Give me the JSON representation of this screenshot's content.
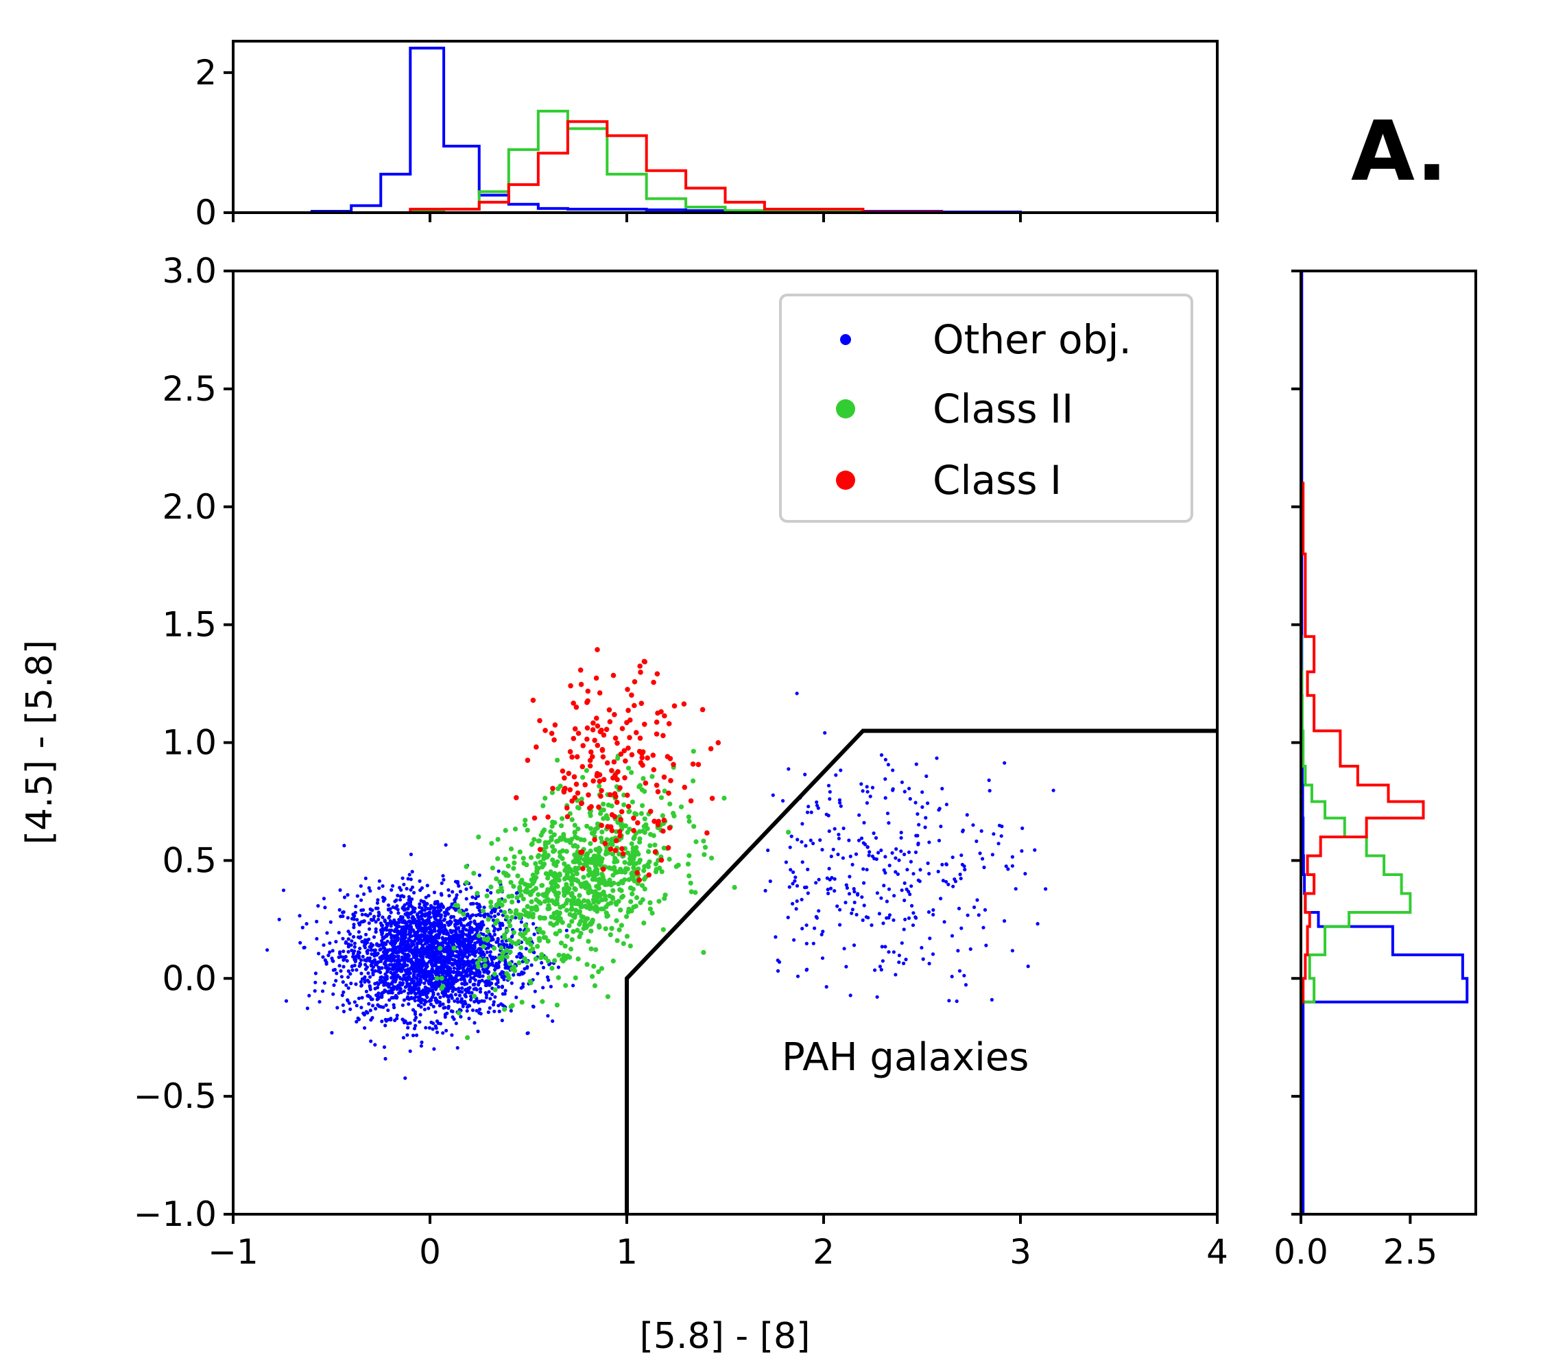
{
  "chart_data": {
    "type": "scatter",
    "panel_label": "A.",
    "xlabel": "[5.8] - [8]",
    "ylabel": "[4.5] - [5.8]",
    "xlim": [
      -1,
      4
    ],
    "ylim": [
      -1.0,
      3.0
    ],
    "x_ticks": [
      "−1",
      "0",
      "1",
      "2",
      "3",
      "4"
    ],
    "y_ticks": [
      "−1.0",
      "−0.5",
      "0.0",
      "0.5",
      "1.0",
      "1.5",
      "2.0",
      "2.5",
      "3.0"
    ],
    "legend_position": "top-right",
    "series": [
      {
        "name": "Other obj.",
        "color": "#0000ff",
        "center": [
          0.0,
          0.1
        ],
        "spread": [
          0.22,
          0.13
        ]
      },
      {
        "name": "Class II",
        "color": "#32cd32",
        "center": [
          0.75,
          0.4
        ],
        "spread": [
          0.25,
          0.17
        ]
      },
      {
        "name": "Class I",
        "color": "#ff0000",
        "center": [
          0.95,
          0.9
        ],
        "spread": [
          0.2,
          0.2
        ]
      }
    ],
    "pah_boundary": {
      "x": [
        1.0,
        1.0,
        2.2,
        4.0
      ],
      "y": [
        -1.0,
        0.0,
        1.05,
        1.05
      ]
    },
    "annotation": "PAH galaxies",
    "top_histogram": {
      "ylim": [
        0,
        2.4
      ],
      "y_ticks": [
        "0",
        "2"
      ],
      "bin_edges": [
        -0.6,
        -0.4,
        -0.25,
        -0.1,
        0.07,
        0.25,
        0.4,
        0.55,
        0.7,
        0.9,
        1.1,
        1.3,
        1.5,
        1.7,
        2.2,
        2.6,
        3.0
      ],
      "series": [
        {
          "name": "Other obj.",
          "color": "#0000ff",
          "values": [
            0.02,
            0.1,
            0.55,
            2.35,
            0.95,
            0.25,
            0.12,
            0.06,
            0.05,
            0.05,
            0.04,
            0.03,
            0.02,
            0.01,
            0.02,
            0.01
          ]
        },
        {
          "name": "Class II",
          "color": "#32cd32",
          "values": [
            0.0,
            0.0,
            0.0,
            0.02,
            0.05,
            0.3,
            0.9,
            1.45,
            1.2,
            0.55,
            0.2,
            0.08,
            0.03,
            0.01,
            0.0,
            0.0
          ]
        },
        {
          "name": "Class I",
          "color": "#ff0000",
          "values": [
            0.0,
            0.0,
            0.0,
            0.05,
            0.05,
            0.15,
            0.4,
            0.85,
            1.3,
            1.1,
            0.6,
            0.35,
            0.15,
            0.05,
            0.01,
            0.0
          ]
        }
      ]
    },
    "right_histogram": {
      "xlim": [
        0,
        4.0
      ],
      "x_ticks": [
        "0.0",
        "2.5"
      ],
      "bin_edges": [
        -1.0,
        -0.1,
        0.0,
        0.1,
        0.22,
        0.28,
        0.36,
        0.44,
        0.52,
        0.6,
        0.68,
        0.75,
        0.82,
        0.9,
        1.05,
        1.2,
        1.3,
        1.45,
        1.6,
        1.8,
        2.1,
        3.0
      ],
      "series": [
        {
          "name": "Other obj.",
          "color": "#0000ff",
          "values": [
            0.05,
            3.8,
            3.7,
            2.1,
            0.4,
            0.1,
            0.08,
            0.06,
            0.05,
            0.05,
            0.04,
            0.04,
            0.03,
            0.03,
            0.02,
            0.02,
            0.02,
            0.02,
            0.02,
            0.02,
            0.02
          ]
        },
        {
          "name": "Class II",
          "color": "#32cd32",
          "values": [
            0.0,
            0.3,
            0.2,
            0.55,
            1.1,
            2.5,
            2.3,
            1.9,
            1.5,
            1.0,
            0.55,
            0.25,
            0.1,
            0.05,
            0.03,
            0.02,
            0.01,
            0.0,
            0.0,
            0.0,
            0.0
          ]
        },
        {
          "name": "Class I",
          "color": "#ff0000",
          "values": [
            0.0,
            0.05,
            0.1,
            0.15,
            0.2,
            0.1,
            0.3,
            0.15,
            0.45,
            1.5,
            2.8,
            2.0,
            1.3,
            0.9,
            0.3,
            0.15,
            0.3,
            0.1,
            0.1,
            0.05,
            0.0
          ]
        }
      ]
    }
  }
}
